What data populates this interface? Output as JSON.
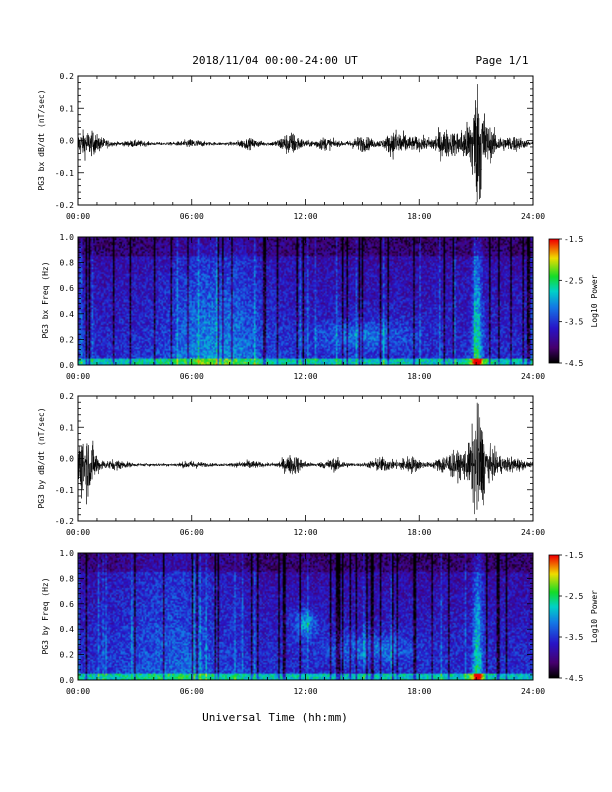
{
  "header": {
    "title": "2018/11/04  00:00-24:00 UT",
    "page": "Page 1/1"
  },
  "footer": {
    "xlabel": "Universal Time (hh:mm)"
  },
  "chart_data": [
    {
      "type": "line",
      "ylabel": "PG3 bx dB/dt (nT/sec)",
      "ylim": [
        -0.2,
        0.2
      ],
      "yticks": [
        "0.2",
        "0.1",
        "0.0",
        "-0.1",
        "-0.2"
      ],
      "xticks": [
        "00:00",
        "06:00",
        "12:00",
        "18:00",
        "24:00"
      ],
      "xlim": [
        0,
        24
      ],
      "baseline": -0.01,
      "activity": [
        {
          "t": 0.3,
          "amp": 0.04
        },
        {
          "t": 1.0,
          "amp": 0.02
        },
        {
          "t": 3.0,
          "amp": 0.008
        },
        {
          "t": 6.0,
          "amp": 0.012
        },
        {
          "t": 9.0,
          "amp": 0.015
        },
        {
          "t": 11.2,
          "amp": 0.04
        },
        {
          "t": 13.0,
          "amp": 0.02
        },
        {
          "t": 15.0,
          "amp": 0.025
        },
        {
          "t": 16.8,
          "amp": 0.05
        },
        {
          "t": 18.0,
          "amp": 0.02
        },
        {
          "t": 19.3,
          "amp": 0.05
        },
        {
          "t": 20.5,
          "amp": 0.06
        },
        {
          "t": 21.1,
          "amp": 0.2
        },
        {
          "t": 21.7,
          "amp": 0.05
        },
        {
          "t": 23.0,
          "amp": 0.025
        }
      ]
    },
    {
      "type": "heatmap",
      "ylabel": "PG3 bx Freq (Hz)",
      "ylim": [
        0,
        1.0
      ],
      "yticks": [
        "1.0",
        "0.8",
        "0.6",
        "0.4",
        "0.2",
        "0.0"
      ],
      "xticks": [
        "00:00",
        "06:00",
        "12:00",
        "18:00",
        "24:00"
      ],
      "colorbar": {
        "label": "Log10 Power",
        "ticks": [
          "-1.5",
          "-2.5",
          "-3.5",
          "-4.5"
        ],
        "range": [
          -4.5,
          -1.5
        ]
      },
      "features": [
        "broadband enhancement 04:00-10:30",
        "band near 0.2 Hz 13:00-17:00",
        "burst at 21:00"
      ]
    },
    {
      "type": "line",
      "ylabel": "PG3 by dB/dt (nT/sec)",
      "ylim": [
        -0.2,
        0.2
      ],
      "yticks": [
        "0.2",
        "0.1",
        "0.0",
        "-0.1",
        "-0.2"
      ],
      "xticks": [
        "00:00",
        "06:00",
        "12:00",
        "18:00",
        "24:00"
      ],
      "xlim": [
        0,
        24
      ],
      "baseline": -0.02,
      "activity": [
        {
          "t": 0.3,
          "amp": 0.05
        },
        {
          "t": 0.35,
          "amp": 0.08
        },
        {
          "t": 2.0,
          "amp": 0.015
        },
        {
          "t": 6.0,
          "amp": 0.01
        },
        {
          "t": 9.0,
          "amp": 0.012
        },
        {
          "t": 11.3,
          "amp": 0.035
        },
        {
          "t": 13.5,
          "amp": 0.02
        },
        {
          "t": 16.0,
          "amp": 0.025
        },
        {
          "t": 17.5,
          "amp": 0.03
        },
        {
          "t": 19.5,
          "amp": 0.04
        },
        {
          "t": 20.5,
          "amp": 0.05
        },
        {
          "t": 21.1,
          "amp": 0.2
        },
        {
          "t": 21.8,
          "amp": 0.05
        },
        {
          "t": 23.0,
          "amp": 0.025
        }
      ]
    },
    {
      "type": "heatmap",
      "ylabel": "PG3 by Freq (Hz)",
      "ylim": [
        0,
        1.0
      ],
      "yticks": [
        "1.0",
        "0.8",
        "0.6",
        "0.4",
        "0.2",
        "0.0"
      ],
      "xticks": [
        "00:00",
        "06:00",
        "12:00",
        "18:00",
        "24:00"
      ],
      "colorbar": {
        "label": "Log10 Power",
        "ticks": [
          "-1.5",
          "-2.5",
          "-3.5",
          "-4.5"
        ],
        "range": [
          -4.5,
          -1.5
        ]
      },
      "features": [
        "emission near 0.45 Hz at 12:00",
        "band near 0.25 Hz 13:30-18:00",
        "burst at 21:00"
      ]
    }
  ]
}
